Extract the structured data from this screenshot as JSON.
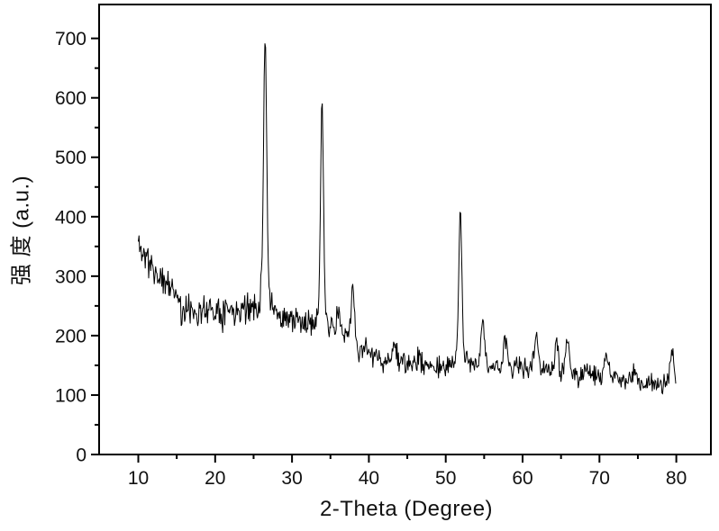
{
  "figure": {
    "background": "#ffffff",
    "axis_color": "#000000",
    "text_color": "#111111"
  },
  "chart_data": {
    "type": "line",
    "title": "",
    "xlabel": "2-Theta (Degree)",
    "ylabel": "强 度 (a.u.)",
    "legend": "none",
    "grid": false,
    "line_color": "#000000",
    "xlim": [
      4.9,
      84.5
    ],
    "ylim": [
      0,
      757
    ],
    "x_ticks": [
      10,
      20,
      30,
      40,
      50,
      60,
      70,
      80
    ],
    "x_minor_ticks": [
      15,
      25,
      35,
      45,
      55,
      65,
      75
    ],
    "y_ticks": [
      0,
      100,
      200,
      300,
      400,
      500,
      600,
      700
    ],
    "y_minor_ticks": [
      50,
      150,
      250,
      350,
      450,
      550,
      650
    ],
    "x_data_range": [
      10,
      80
    ],
    "baseline_points": [
      [
        10,
        357
      ],
      [
        11,
        332
      ],
      [
        12,
        310
      ],
      [
        13,
        296
      ],
      [
        14,
        284
      ],
      [
        15,
        272
      ],
      [
        15.3,
        264
      ],
      [
        15.6,
        240
      ],
      [
        17,
        243
      ],
      [
        19,
        245
      ],
      [
        21,
        244
      ],
      [
        23,
        246
      ],
      [
        25,
        244
      ],
      [
        26.5,
        243
      ],
      [
        28,
        234
      ],
      [
        30,
        226
      ],
      [
        32,
        219
      ],
      [
        33.9,
        213
      ],
      [
        35,
        206
      ],
      [
        36.5,
        200
      ],
      [
        37.9,
        190
      ],
      [
        38.8,
        175
      ],
      [
        40,
        163
      ],
      [
        42,
        157
      ],
      [
        44,
        154
      ],
      [
        46,
        151
      ],
      [
        48,
        149
      ],
      [
        50,
        147
      ],
      [
        52,
        148
      ],
      [
        54,
        150
      ],
      [
        56,
        149
      ],
      [
        58,
        147
      ],
      [
        60,
        145
      ],
      [
        61.8,
        146
      ],
      [
        63,
        141
      ],
      [
        64.5,
        138
      ],
      [
        66,
        136
      ],
      [
        68,
        133
      ],
      [
        70,
        130
      ],
      [
        72,
        128
      ],
      [
        74,
        126
      ],
      [
        76,
        122
      ],
      [
        78,
        118
      ],
      [
        80,
        113
      ]
    ],
    "peaks": [
      {
        "two_theta": 26.5,
        "intensity": 700,
        "amp": 405,
        "width": 0.28,
        "base_amp": 48,
        "base_width": 0.85
      },
      {
        "two_theta": 33.9,
        "intensity": 598,
        "amp": 335,
        "width": 0.26,
        "base_amp": 42,
        "base_width": 0.8
      },
      {
        "two_theta": 36.0,
        "intensity": 245,
        "amp": 42,
        "width": 0.3
      },
      {
        "two_theta": 37.9,
        "intensity": 282,
        "amp": 92,
        "width": 0.32
      },
      {
        "two_theta": 39.8,
        "intensity": 190,
        "amp": 22,
        "width": 0.3
      },
      {
        "two_theta": 43.3,
        "intensity": 186,
        "amp": 30,
        "width": 0.4
      },
      {
        "two_theta": 46.5,
        "intensity": 165,
        "amp": 14,
        "width": 0.35
      },
      {
        "two_theta": 51.9,
        "intensity": 410,
        "amp": 222,
        "width": 0.27,
        "base_amp": 36,
        "base_width": 0.7
      },
      {
        "two_theta": 54.8,
        "intensity": 228,
        "amp": 75,
        "width": 0.35
      },
      {
        "two_theta": 57.8,
        "intensity": 192,
        "amp": 44,
        "width": 0.32
      },
      {
        "two_theta": 61.8,
        "intensity": 205,
        "amp": 58,
        "width": 0.35
      },
      {
        "two_theta": 64.4,
        "intensity": 188,
        "amp": 48,
        "width": 0.3
      },
      {
        "two_theta": 65.8,
        "intensity": 194,
        "amp": 56,
        "width": 0.32
      },
      {
        "two_theta": 68.2,
        "intensity": 150,
        "amp": 16,
        "width": 0.3
      },
      {
        "two_theta": 70.9,
        "intensity": 163,
        "amp": 32,
        "width": 0.4
      },
      {
        "two_theta": 74.6,
        "intensity": 140,
        "amp": 14,
        "width": 0.3
      },
      {
        "two_theta": 79.4,
        "intensity": 172,
        "amp": 55,
        "width": 0.35
      }
    ],
    "noise": {
      "seed": 11,
      "step": 0.09,
      "amps": [
        31,
        26,
        21
      ],
      "thresholds": [
        27,
        40
      ],
      "peak_noise_factor": 0.45
    }
  }
}
